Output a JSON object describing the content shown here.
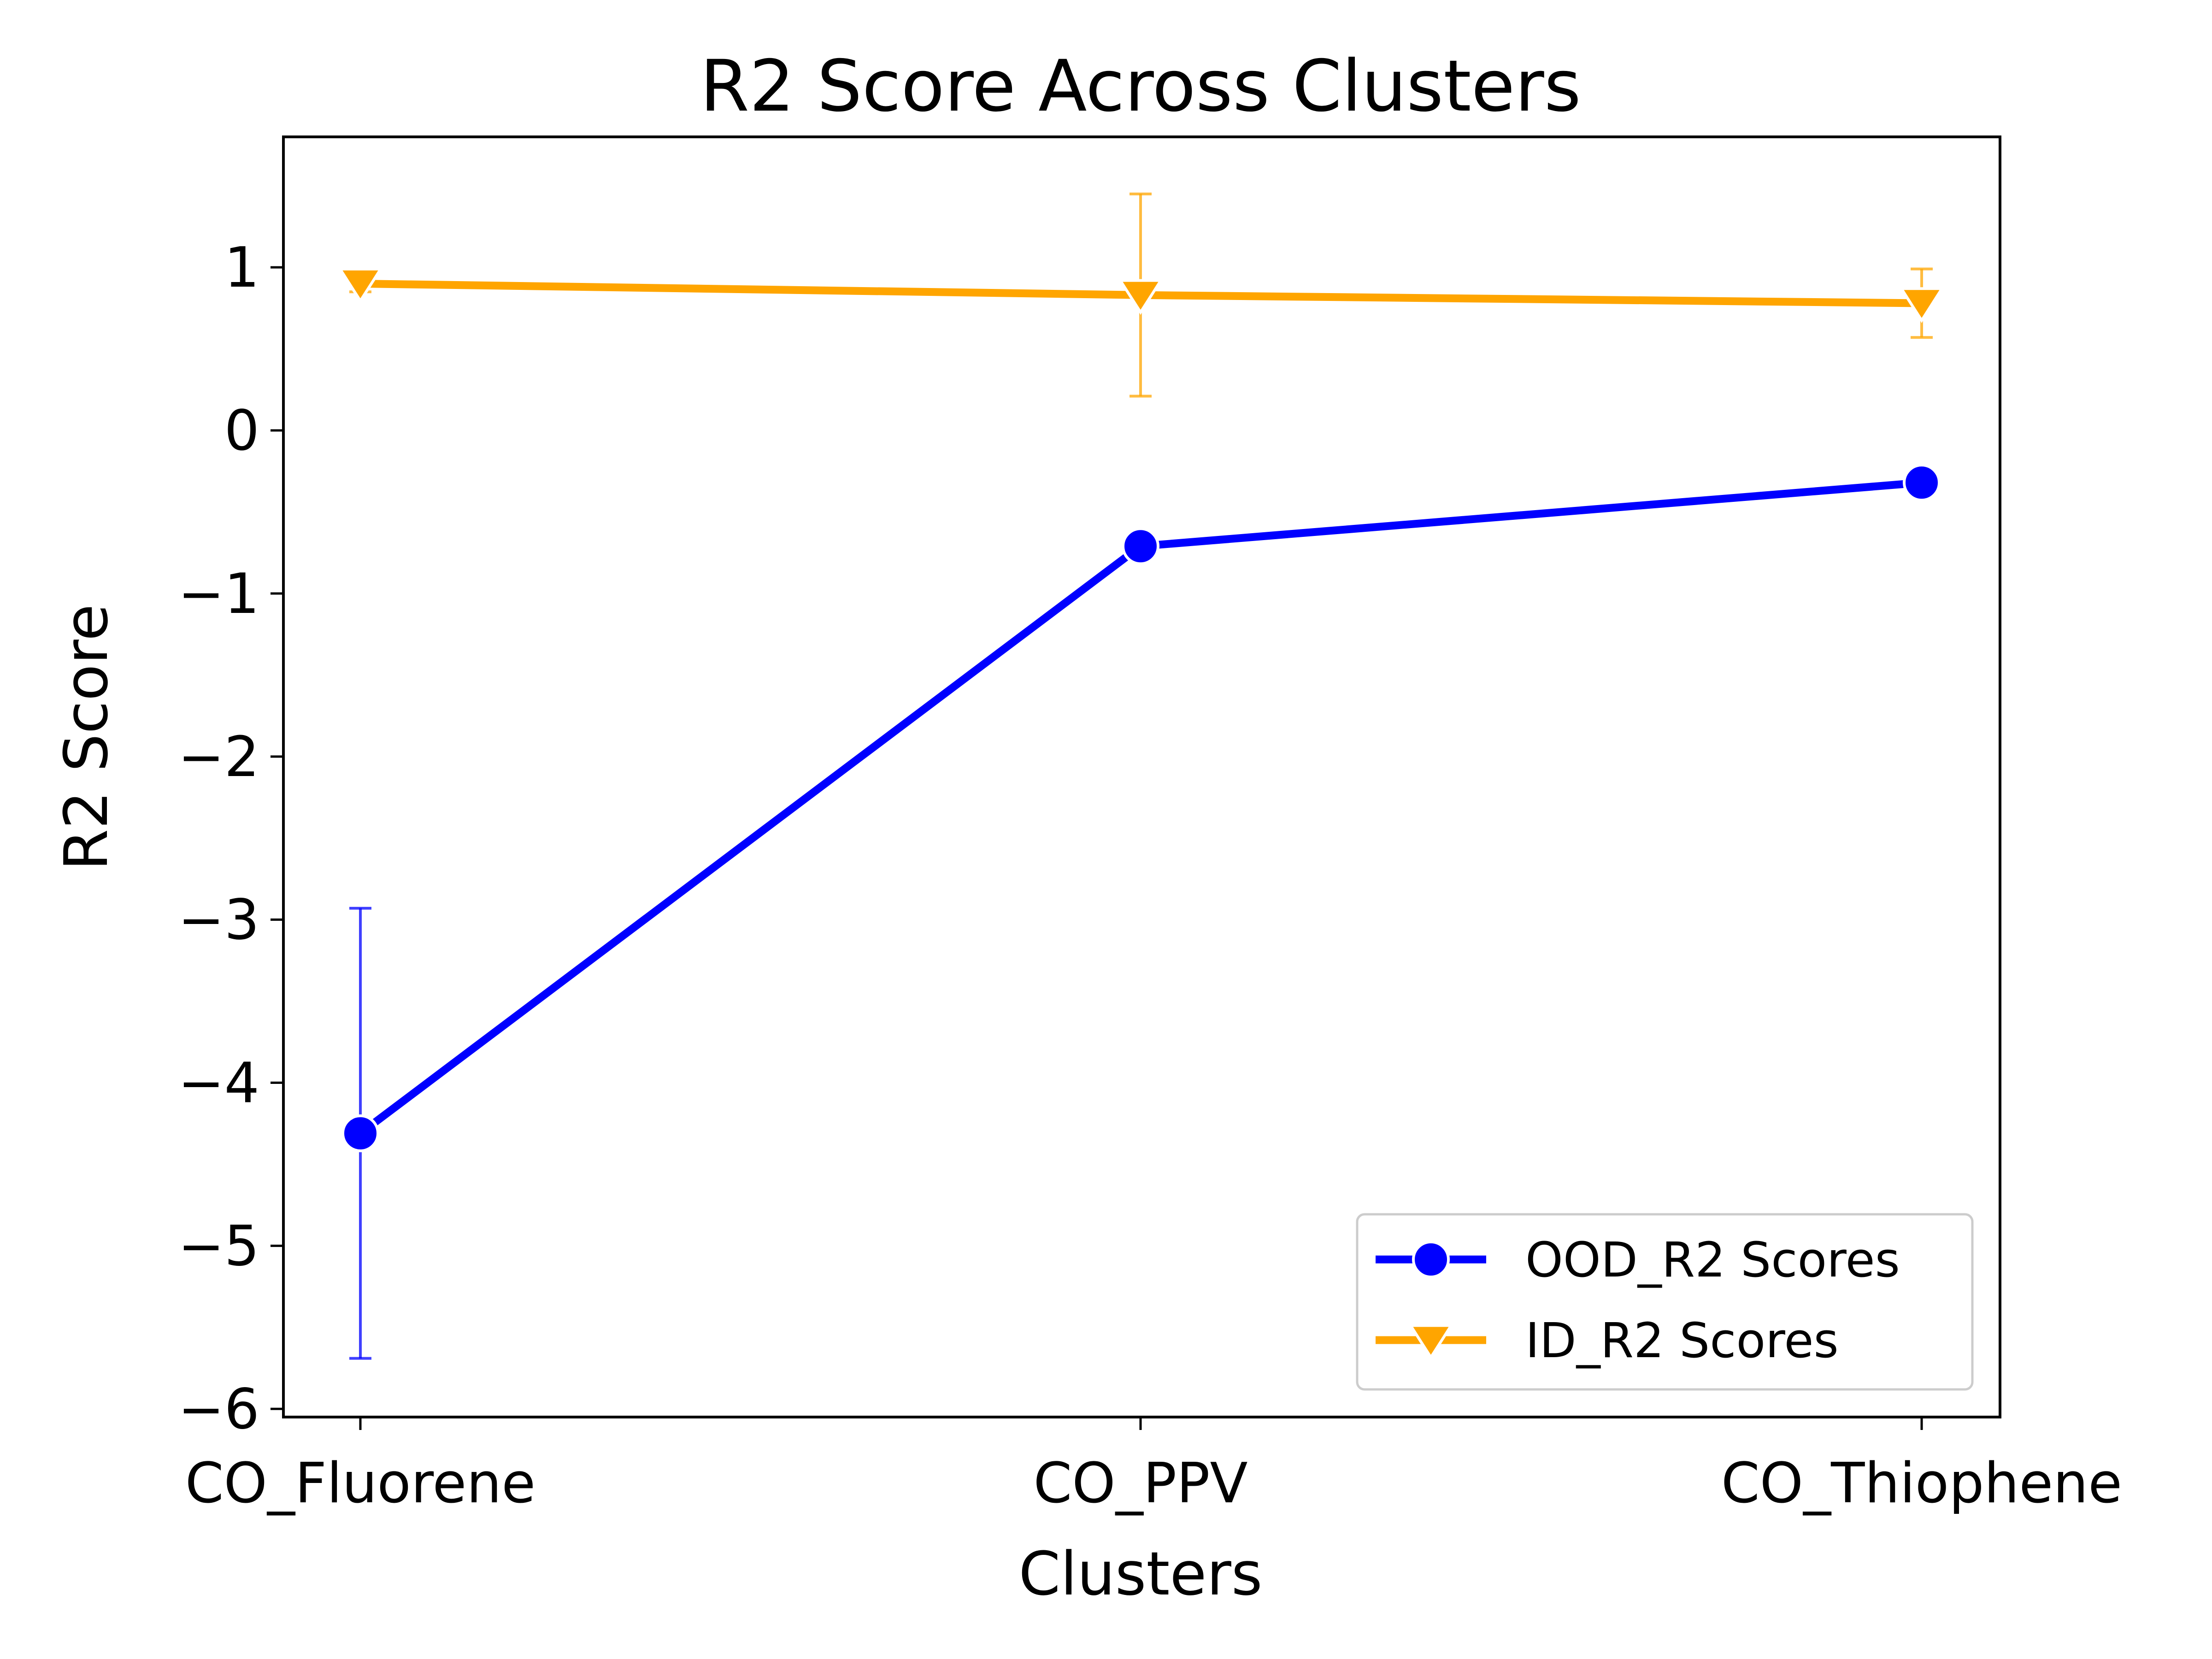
{
  "chart_data": {
    "type": "line",
    "title": "R2 Score Across Clusters",
    "xlabel": "Clusters",
    "ylabel": "R2 Score",
    "categories": [
      "CO_Fluorene",
      "CO_PPV",
      "CO_Thiophene"
    ],
    "ylim": [
      -6.05,
      1.8
    ],
    "yticks": [
      1,
      0,
      -1,
      -2,
      -3,
      -4,
      -5,
      -6
    ],
    "ytick_labels": [
      "1",
      "0",
      "−1",
      "−2",
      "−3",
      "−4",
      "−5",
      "−6"
    ],
    "grid": false,
    "legend_position": "lower-right",
    "series": [
      {
        "name": "OOD_R2 Scores",
        "color": "#0000ff",
        "marker": "circle",
        "values": [
          -4.31,
          -0.71,
          -0.32
        ],
        "err_low": [
          -5.69,
          -0.71,
          -0.4
        ],
        "err_high": [
          -2.93,
          -0.71,
          -0.24
        ]
      },
      {
        "name": "ID_R2 Scores",
        "color": "#ffa500",
        "marker": "triangle-down",
        "values": [
          0.9,
          0.83,
          0.78
        ],
        "err_low": [
          0.85,
          0.21,
          0.57
        ],
        "err_high": [
          0.95,
          1.45,
          0.99
        ]
      }
    ]
  }
}
